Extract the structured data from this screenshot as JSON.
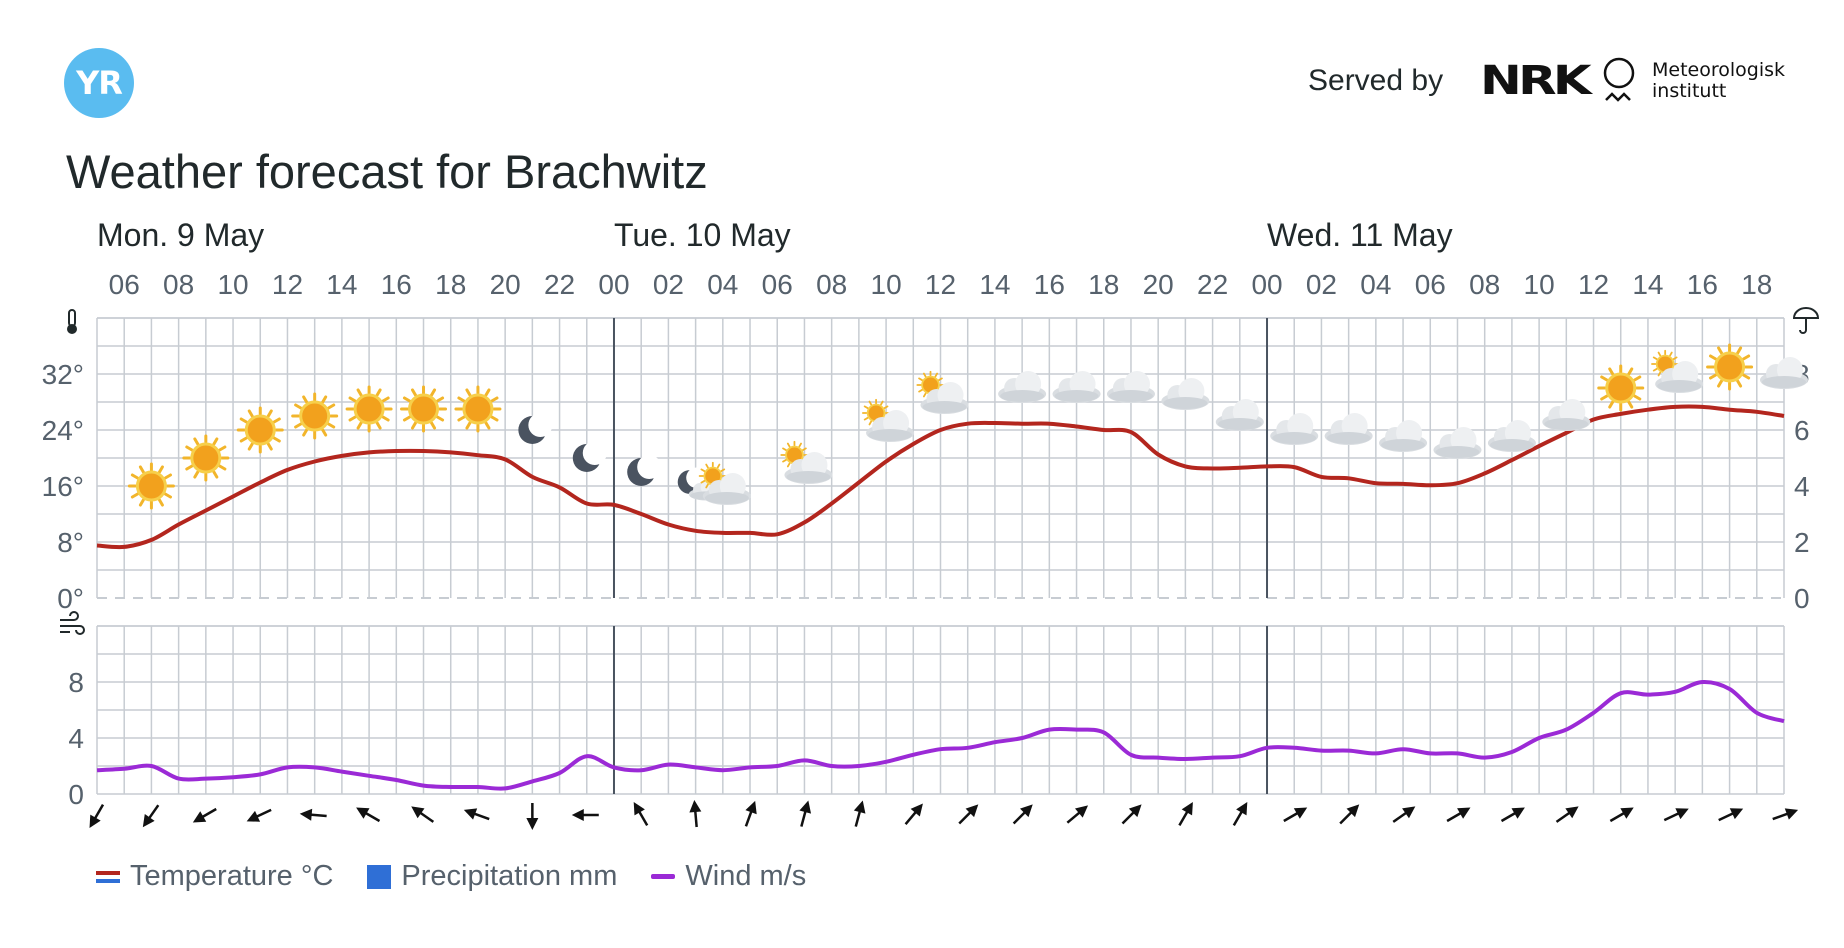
{
  "header": {
    "logo_text": "YR",
    "served_by": "Served by",
    "nrk_logo": "NRK",
    "met_line1": "Meteorologisk",
    "met_line2": "institutt",
    "title": "Weather forecast for Brachwitz"
  },
  "colors": {
    "temperature": "#b3261e",
    "wind": "#9b2ad6",
    "precipitation": "#2f6fd6",
    "grid": "#c7ccd2",
    "day_separator": "#4a5360",
    "yr_blue": "#5abcf0"
  },
  "chart_data": [
    {
      "type": "line",
      "name": "temperature-panel",
      "days": [
        {
          "label": "Mon. 9 May",
          "start_hour": 5
        },
        {
          "label": "Tue. 10 May",
          "start_hour": 24
        },
        {
          "label": "Wed. 11 May",
          "start_hour": 48
        }
      ],
      "hour_tick_labels": [
        "06",
        "08",
        "10",
        "12",
        "14",
        "16",
        "18",
        "20",
        "22",
        "00",
        "02",
        "04",
        "06",
        "08",
        "10",
        "12",
        "14",
        "16",
        "18",
        "20",
        "22",
        "00",
        "02",
        "04",
        "06",
        "08",
        "10",
        "12",
        "14",
        "16",
        "18"
      ],
      "x_start_hour": 5,
      "x_end_hour": 67,
      "ylim_left": [
        0,
        40
      ],
      "yticks_left": [
        0,
        8,
        16,
        24,
        32
      ],
      "ytick_labels_left": [
        "0°",
        "8°",
        "16°",
        "24°",
        "32°"
      ],
      "ylim_right": [
        0,
        10
      ],
      "yticks_right": [
        0,
        2,
        4,
        6,
        8
      ],
      "ytick_labels_right": [
        "0",
        "2",
        "4",
        "6",
        "8"
      ],
      "left_axis_icon": "thermometer-icon",
      "right_axis_icon": "umbrella-icon",
      "series": [
        {
          "name": "Temperature °C",
          "x_hours": [
            5,
            6,
            7,
            8,
            9,
            10,
            11,
            12,
            13,
            14,
            15,
            16,
            17,
            18,
            19,
            20,
            21,
            22,
            23,
            24,
            25,
            26,
            27,
            28,
            29,
            30,
            31,
            32,
            33,
            34,
            35,
            36,
            37,
            38,
            39,
            40,
            41,
            42,
            43,
            44,
            45,
            46,
            47,
            48,
            49,
            50,
            51,
            52,
            53,
            54,
            55,
            56,
            57,
            58,
            59,
            60,
            61,
            62,
            63,
            64,
            65,
            66,
            67
          ],
          "values": [
            7.5,
            7.3,
            8.3,
            10.5,
            12.5,
            14.5,
            16.5,
            18.3,
            19.5,
            20.3,
            20.8,
            21.0,
            21.0,
            20.8,
            20.4,
            19.8,
            17.3,
            15.8,
            13.5,
            13.3,
            12.0,
            10.5,
            9.6,
            9.3,
            9.3,
            9.1,
            10.8,
            13.5,
            16.5,
            19.5,
            22.0,
            24.0,
            24.9,
            25.0,
            24.9,
            24.9,
            24.5,
            24.0,
            23.7,
            20.5,
            18.8,
            18.5,
            18.6,
            18.8,
            18.7,
            17.3,
            17.1,
            16.4,
            16.3,
            16.1,
            16.4,
            17.8,
            19.7,
            21.7,
            23.6,
            25.5,
            26.3,
            26.9,
            27.3,
            27.3,
            26.9,
            26.6,
            26.0
          ]
        },
        {
          "name": "Precipitation mm",
          "values": []
        }
      ],
      "weather_symbols": [
        {
          "hour": 7,
          "symbol": "sun",
          "temp": 16
        },
        {
          "hour": 9,
          "symbol": "sun",
          "temp": 20
        },
        {
          "hour": 11,
          "symbol": "sun",
          "temp": 24
        },
        {
          "hour": 13,
          "symbol": "sun",
          "temp": 26
        },
        {
          "hour": 15,
          "symbol": "sun",
          "temp": 27
        },
        {
          "hour": 17,
          "symbol": "sun",
          "temp": 27
        },
        {
          "hour": 19,
          "symbol": "sun",
          "temp": 27
        },
        {
          "hour": 21,
          "symbol": "moon",
          "temp": 24
        },
        {
          "hour": 23,
          "symbol": "moon",
          "temp": 20
        },
        {
          "hour": 25,
          "symbol": "moon",
          "temp": 18
        },
        {
          "hour": 27,
          "symbol": "moon-cloud",
          "temp": 16
        },
        {
          "hour": 28,
          "symbol": "sun-cloud",
          "temp": 16
        },
        {
          "hour": 31,
          "symbol": "sun-cloud",
          "temp": 19
        },
        {
          "hour": 34,
          "symbol": "sun-cloud",
          "temp": 25
        },
        {
          "hour": 36,
          "symbol": "sun-cloud",
          "temp": 29
        },
        {
          "hour": 39,
          "symbol": "cloud",
          "temp": 30
        },
        {
          "hour": 41,
          "symbol": "cloud",
          "temp": 30
        },
        {
          "hour": 43,
          "symbol": "cloud",
          "temp": 30
        },
        {
          "hour": 45,
          "symbol": "cloud",
          "temp": 29
        },
        {
          "hour": 47,
          "symbol": "cloud",
          "temp": 26
        },
        {
          "hour": 49,
          "symbol": "cloud",
          "temp": 24
        },
        {
          "hour": 51,
          "symbol": "cloud",
          "temp": 24
        },
        {
          "hour": 53,
          "symbol": "cloud",
          "temp": 23
        },
        {
          "hour": 55,
          "symbol": "cloud",
          "temp": 22
        },
        {
          "hour": 57,
          "symbol": "cloud",
          "temp": 23
        },
        {
          "hour": 59,
          "symbol": "cloud",
          "temp": 26
        },
        {
          "hour": 61,
          "symbol": "sun",
          "temp": 30
        },
        {
          "hour": 63,
          "symbol": "sun-cloud",
          "temp": 32
        },
        {
          "hour": 65,
          "symbol": "sun",
          "temp": 33
        },
        {
          "hour": 67,
          "symbol": "cloud",
          "temp": 32
        }
      ]
    },
    {
      "type": "line",
      "name": "wind-panel",
      "x_start_hour": 5,
      "x_end_hour": 67,
      "ylim": [
        0,
        12
      ],
      "yticks": [
        0,
        4,
        8
      ],
      "ytick_labels": [
        "0",
        "4",
        "8"
      ],
      "left_axis_icon": "wind-icon",
      "series": [
        {
          "name": "Wind m/s",
          "x_hours": [
            5,
            6,
            7,
            8,
            9,
            10,
            11,
            12,
            13,
            14,
            15,
            16,
            17,
            18,
            19,
            20,
            21,
            22,
            23,
            24,
            25,
            26,
            27,
            28,
            29,
            30,
            31,
            32,
            33,
            34,
            35,
            36,
            37,
            38,
            39,
            40,
            41,
            42,
            43,
            44,
            45,
            46,
            47,
            48,
            49,
            50,
            51,
            52,
            53,
            54,
            55,
            56,
            57,
            58,
            59,
            60,
            61,
            62,
            63,
            64,
            65,
            66,
            67
          ],
          "values": [
            1.7,
            1.8,
            2.0,
            1.1,
            1.1,
            1.2,
            1.4,
            1.9,
            1.9,
            1.6,
            1.3,
            1.0,
            0.6,
            0.5,
            0.5,
            0.4,
            0.9,
            1.5,
            2.7,
            1.9,
            1.7,
            2.1,
            1.9,
            1.7,
            1.9,
            2.0,
            2.4,
            2.0,
            2.0,
            2.3,
            2.8,
            3.2,
            3.3,
            3.7,
            4.0,
            4.6,
            4.6,
            4.4,
            2.8,
            2.6,
            2.5,
            2.6,
            2.7,
            3.3,
            3.3,
            3.1,
            3.1,
            2.9,
            3.2,
            2.9,
            2.9,
            2.6,
            3.0,
            4.0,
            4.6,
            5.8,
            7.2,
            7.1,
            7.3,
            8.0,
            7.5,
            5.8,
            5.2
          ]
        }
      ],
      "wind_direction_arrows": [
        {
          "hour": 5,
          "toward_deg": 210
        },
        {
          "hour": 7,
          "toward_deg": 215
        },
        {
          "hour": 9,
          "toward_deg": 240
        },
        {
          "hour": 11,
          "toward_deg": 245
        },
        {
          "hour": 13,
          "toward_deg": 275
        },
        {
          "hour": 15,
          "toward_deg": 300
        },
        {
          "hour": 17,
          "toward_deg": 305
        },
        {
          "hour": 19,
          "toward_deg": 290
        },
        {
          "hour": 21,
          "toward_deg": 180
        },
        {
          "hour": 23,
          "toward_deg": 270
        },
        {
          "hour": 25,
          "toward_deg": 330
        },
        {
          "hour": 27,
          "toward_deg": 355
        },
        {
          "hour": 29,
          "toward_deg": 20
        },
        {
          "hour": 31,
          "toward_deg": 15
        },
        {
          "hour": 33,
          "toward_deg": 15
        },
        {
          "hour": 35,
          "toward_deg": 40
        },
        {
          "hour": 37,
          "toward_deg": 45
        },
        {
          "hour": 39,
          "toward_deg": 45
        },
        {
          "hour": 41,
          "toward_deg": 50
        },
        {
          "hour": 43,
          "toward_deg": 45
        },
        {
          "hour": 45,
          "toward_deg": 30
        },
        {
          "hour": 47,
          "toward_deg": 30
        },
        {
          "hour": 49,
          "toward_deg": 60
        },
        {
          "hour": 51,
          "toward_deg": 45
        },
        {
          "hour": 53,
          "toward_deg": 55
        },
        {
          "hour": 55,
          "toward_deg": 60
        },
        {
          "hour": 57,
          "toward_deg": 60
        },
        {
          "hour": 59,
          "toward_deg": 55
        },
        {
          "hour": 61,
          "toward_deg": 60
        },
        {
          "hour": 63,
          "toward_deg": 65
        },
        {
          "hour": 65,
          "toward_deg": 65
        },
        {
          "hour": 67,
          "toward_deg": 70
        }
      ]
    }
  ],
  "legend": [
    {
      "label": "Temperature °C",
      "key": "temperature"
    },
    {
      "label": "Precipitation mm",
      "key": "precipitation"
    },
    {
      "label": "Wind m/s",
      "key": "wind"
    }
  ]
}
